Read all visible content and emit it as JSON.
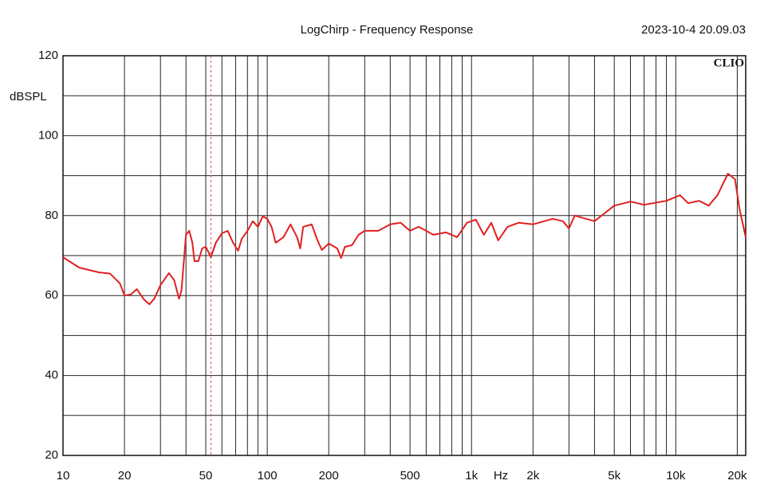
{
  "chart_data": {
    "type": "line",
    "log_x": true,
    "grid": true,
    "title": "LogChirp - Frequency Response",
    "timestamp": "2023-10-4 20.09.03",
    "brand": "CLIO",
    "ylabel": "dBSPL",
    "xunit": "Hz",
    "xlim": [
      10,
      22000
    ],
    "ylim": [
      20,
      120
    ],
    "xticks": [
      10,
      20,
      50,
      100,
      200,
      500,
      {
        "value": 1000,
        "label": "1k"
      },
      {
        "value": 2000,
        "label": "2k"
      },
      {
        "value": 5000,
        "label": "5k"
      },
      {
        "value": 10000,
        "label": "10k"
      },
      {
        "value": 20000,
        "label": "20k"
      }
    ],
    "xminor": [
      30,
      40,
      60,
      70,
      80,
      90,
      300,
      400,
      600,
      700,
      800,
      900,
      3000,
      4000,
      6000,
      7000,
      8000,
      9000
    ],
    "yticks": [
      20,
      40,
      60,
      80,
      100,
      120
    ],
    "yminor": [
      30,
      50,
      70,
      90,
      110
    ],
    "marker_x": 53,
    "marker_color": "#e05050",
    "x": [
      10,
      12,
      15,
      17,
      19,
      20,
      21.5,
      23,
      25,
      26.5,
      28,
      30,
      33,
      35,
      37,
      38,
      40,
      41.5,
      43,
      44,
      46,
      48,
      50,
      53,
      56,
      60,
      64,
      68,
      72,
      75,
      80,
      85,
      90,
      95,
      100,
      105,
      110,
      120,
      130,
      140,
      145,
      150,
      165,
      175,
      185,
      200,
      220,
      230,
      240,
      260,
      280,
      300,
      350,
      400,
      450,
      500,
      550,
      600,
      650,
      750,
      850,
      950,
      1050,
      1150,
      1250,
      1350,
      1500,
      1700,
      2000,
      2500,
      2800,
      3000,
      3200,
      4000,
      5000,
      6000,
      7000,
      9000,
      10500,
      11500,
      13000,
      14500,
      16000,
      18000,
      19500,
      20500,
      22000
    ],
    "series": [
      {
        "color": "#e02020",
        "values": [
          69.6,
          67,
          65.8,
          65.5,
          63,
          60,
          60.3,
          61.6,
          58.9,
          57.8,
          59.2,
          62.6,
          65.6,
          63.9,
          59.2,
          61.2,
          75.2,
          76.2,
          73.2,
          68.6,
          68.6,
          71.8,
          72.2,
          69.6,
          73.2,
          75.6,
          76.2,
          73.2,
          71.2,
          74.2,
          76.2,
          78.6,
          77.2,
          79.8,
          79.2,
          77.2,
          73.2,
          74.6,
          77.8,
          74.6,
          71.8,
          77.2,
          77.8,
          74.2,
          71.4,
          73,
          71.8,
          69.4,
          72.2,
          72.6,
          75.2,
          76.2,
          76.2,
          77.8,
          78.2,
          76.2,
          77.2,
          76.2,
          75.2,
          75.8,
          74.6,
          78.2,
          79,
          75.2,
          78.2,
          73.8,
          77.2,
          78.2,
          77.8,
          79.2,
          78.6,
          76.8,
          80,
          78.6,
          82.5,
          83.5,
          82.7,
          83.7,
          85.1,
          83.1,
          83.7,
          82.5,
          85.1,
          90.5,
          89.1,
          81.8,
          74.6
        ]
      }
    ]
  }
}
